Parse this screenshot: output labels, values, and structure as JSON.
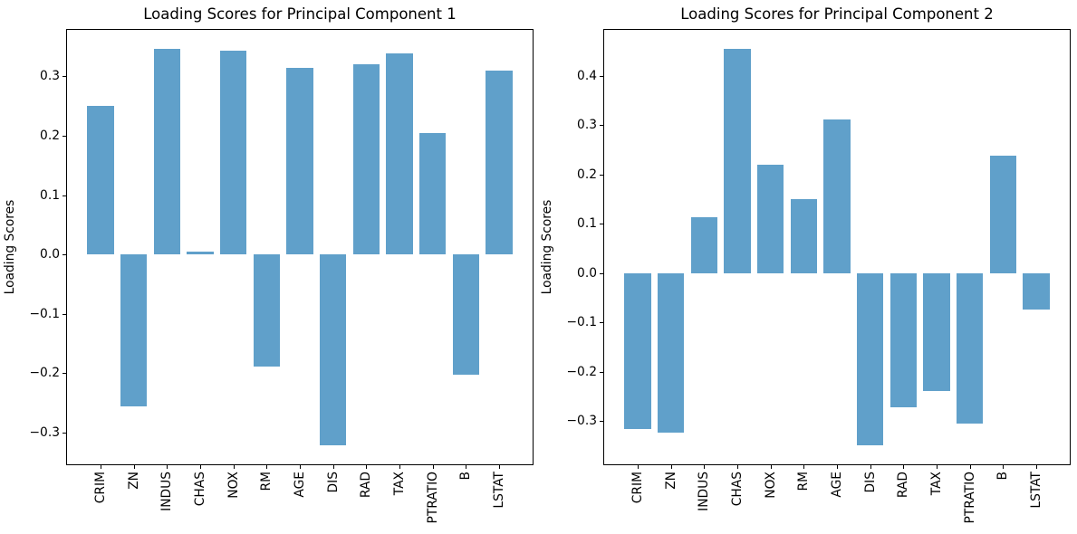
{
  "figure": {
    "background": "#ffffff",
    "bar_color": "#60a0ca",
    "axis_color": "#000000",
    "text_color": "#000000"
  },
  "chart_data": [
    {
      "type": "bar",
      "title": "Loading Scores for Principal Component 1",
      "xlabel": "",
      "ylabel": "Loading Scores",
      "categories": [
        "CRIM",
        "ZN",
        "INDUS",
        "CHAS",
        "NOX",
        "RM",
        "AGE",
        "DIS",
        "RAD",
        "TAX",
        "PTRATIO",
        "B",
        "LSTAT"
      ],
      "values": [
        0.251,
        -0.2563,
        0.3465,
        0.0046,
        0.3426,
        -0.1893,
        0.3136,
        -0.3217,
        0.3198,
        0.3384,
        0.2051,
        -0.2028,
        0.3096
      ],
      "ylim": [
        -0.3551,
        0.3799
      ],
      "yticks": [
        -0.3,
        -0.2,
        -0.1,
        0.0,
        0.1,
        0.2,
        0.3
      ],
      "bar_width": 0.8,
      "grid": false,
      "legend": "none"
    },
    {
      "type": "bar",
      "title": "Loading Scores for Principal Component 2",
      "xlabel": "",
      "ylabel": "Loading Scores",
      "categories": [
        "CRIM",
        "ZN",
        "INDUS",
        "CHAS",
        "NOX",
        "RM",
        "AGE",
        "DIS",
        "RAD",
        "TAX",
        "PTRATIO",
        "B",
        "LSTAT"
      ],
      "values": [
        -0.3152,
        -0.3235,
        0.1129,
        0.4545,
        0.2203,
        0.1493,
        0.3116,
        -0.3492,
        -0.2719,
        -0.2394,
        -0.3059,
        0.2386,
        -0.0744
      ],
      "ylim": [
        -0.3894,
        0.4947
      ],
      "yticks": [
        -0.3,
        -0.2,
        -0.1,
        0.0,
        0.1,
        0.2,
        0.3,
        0.4
      ],
      "bar_width": 0.8,
      "grid": false,
      "legend": "none"
    }
  ]
}
